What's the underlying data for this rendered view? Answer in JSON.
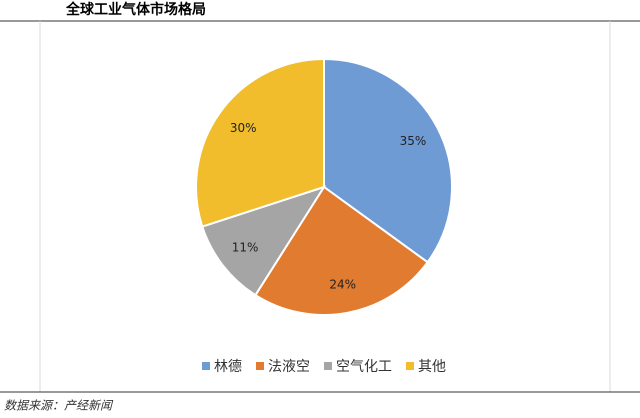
{
  "chart_data": {
    "type": "pie",
    "title": "全球工业气体市场格局",
    "source": "数据来源：产经新闻",
    "categories": [
      "林德",
      "法液空",
      "空气化工",
      "其他"
    ],
    "values": [
      35,
      24,
      11,
      30
    ],
    "value_labels": [
      "35%",
      "24%",
      "11%",
      "30%"
    ],
    "colors": [
      "#6f9bd4",
      "#e07b30",
      "#a5a5a5",
      "#f1bd2c"
    ],
    "legend": "bottom"
  }
}
